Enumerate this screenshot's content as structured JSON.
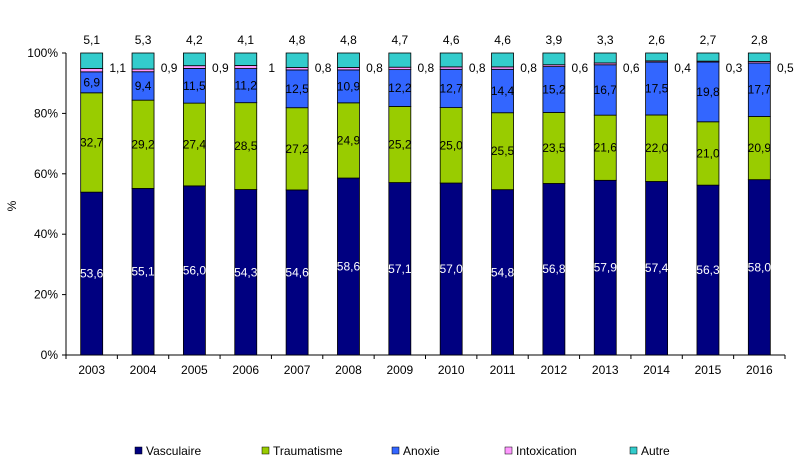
{
  "chart_data": {
    "type": "bar",
    "stacked": true,
    "normalized": true,
    "categories": [
      "2003",
      "2004",
      "2005",
      "2006",
      "2007",
      "2008",
      "2009",
      "2010",
      "2011",
      "2012",
      "2013",
      "2014",
      "2015",
      "2016"
    ],
    "series": [
      {
        "name": "Vasculaire",
        "color": "#000080",
        "label_color": "#ffffff",
        "values": [
          53.6,
          55.1,
          56.0,
          54.3,
          54.6,
          58.6,
          57.1,
          57.0,
          54.8,
          56.8,
          57.9,
          57.4,
          56.3,
          58.0
        ],
        "labels": [
          "53,6",
          "55,1",
          "56,0",
          "54,3",
          "54,6",
          "58,6",
          "57,1",
          "57,0",
          "54,8",
          "56,8",
          "57,9",
          "57,4",
          "56,3",
          "58,0"
        ]
      },
      {
        "name": "Traumatisme",
        "color": "#99cc00",
        "label_color": "#000000",
        "values": [
          32.7,
          29.2,
          27.4,
          28.5,
          27.2,
          24.9,
          25.2,
          25.0,
          25.5,
          23.5,
          21.6,
          22.0,
          21.0,
          20.9
        ],
        "labels": [
          "32,7",
          "29,2",
          "27,4",
          "28,5",
          "27,2",
          "24,9",
          "25,2",
          "25,0",
          "25,5",
          "23,5",
          "21,6",
          "22,0",
          "21,0",
          "20,9"
        ]
      },
      {
        "name": "Anoxie",
        "color": "#3366ff",
        "label_color": "#000000",
        "values": [
          6.9,
          9.4,
          11.5,
          11.2,
          12.5,
          10.9,
          12.2,
          12.7,
          14.4,
          15.2,
          16.7,
          17.5,
          19.8,
          17.7
        ],
        "labels": [
          "6,9",
          "9,4",
          "11,5",
          "11,2",
          "12,5",
          "10,9",
          "12,2",
          "12,7",
          "14,4",
          "15,2",
          "16,7",
          "17,5",
          "19,8",
          "17,7"
        ]
      },
      {
        "name": "Intoxication",
        "color": "#ff99ff",
        "label_color": "#000000",
        "values": [
          1.1,
          0.9,
          0.9,
          1,
          0.8,
          0.8,
          0.8,
          0.8,
          0.8,
          0.6,
          0.6,
          0.4,
          0.3,
          0.5
        ],
        "labels": [
          "1,1",
          "0,9",
          "0,9",
          "1",
          "0,8",
          "0,8",
          "0,8",
          "0,8",
          "0,8",
          "0,6",
          "0,6",
          "0,4",
          "0,3",
          "0,5"
        ]
      },
      {
        "name": "Autre",
        "color": "#33cccc",
        "label_color": "#000000",
        "values": [
          5.1,
          5.3,
          4.2,
          4.1,
          4.8,
          4.8,
          4.7,
          4.6,
          4.6,
          3.9,
          3.3,
          2.6,
          2.7,
          2.8
        ],
        "labels": [
          "5,1",
          "5,3",
          "4,2",
          "4,1",
          "4,8",
          "4,8",
          "4,7",
          "4,6",
          "4,6",
          "3,9",
          "3,3",
          "2,6",
          "2,7",
          "2,8"
        ]
      }
    ],
    "ylabel": "%",
    "ylim": [
      0,
      100
    ],
    "yticks": [
      "0%",
      "20%",
      "40%",
      "60%",
      "80%",
      "100%"
    ],
    "grid": false,
    "legend": "bottom"
  }
}
